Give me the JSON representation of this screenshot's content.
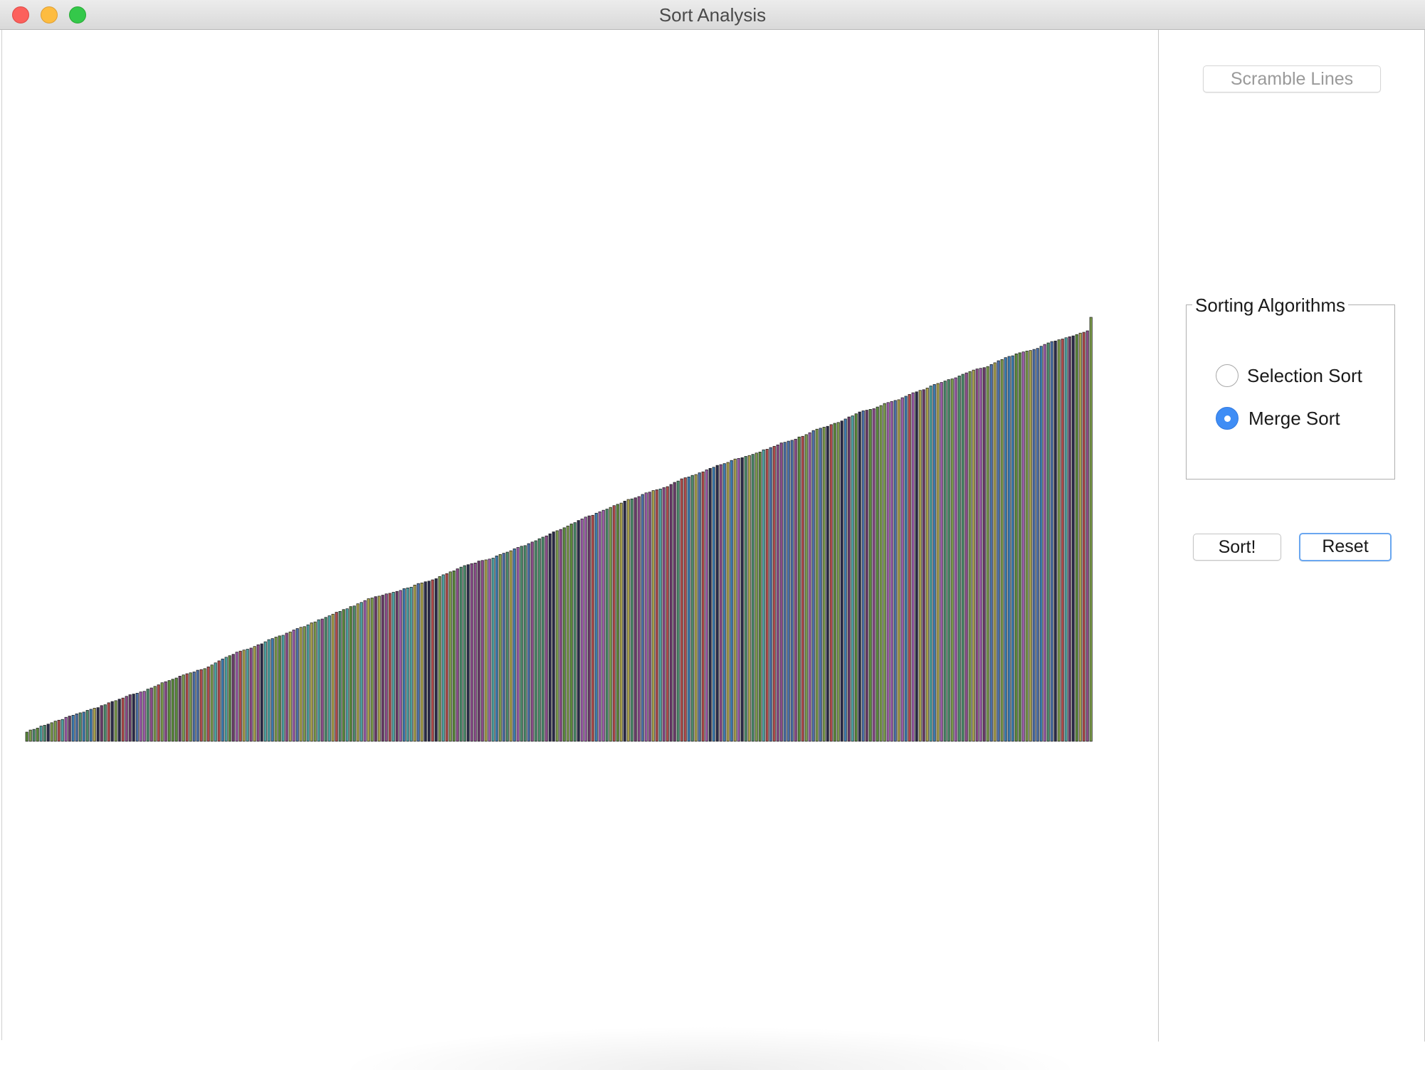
{
  "window": {
    "title": "Sort Analysis"
  },
  "controls": {
    "scramble_label": "Scramble Lines",
    "group_title": "Sorting Algorithms",
    "options": [
      {
        "label": "Selection Sort",
        "selected": false
      },
      {
        "label": "Merge Sort",
        "selected": true
      }
    ],
    "sort_label": "Sort!",
    "reset_label": "Reset"
  },
  "colors": {
    "accent": "#3f8df5",
    "line_palette": [
      "#7a9a4a",
      "#4a6fa8",
      "#8a4a8a",
      "#b04a4a",
      "#4aa0a0",
      "#5a8a3a",
      "#2a2a4a",
      "#9a5aa8",
      "#a8a04a",
      "#3a7ab0",
      "#6a3a6a",
      "#4a8a6a"
    ]
  },
  "chart_data": {
    "type": "bar",
    "description_count": 300,
    "sorted": true,
    "value_range": [
      2,
      118
    ],
    "trend": "monotonic increasing"
  }
}
